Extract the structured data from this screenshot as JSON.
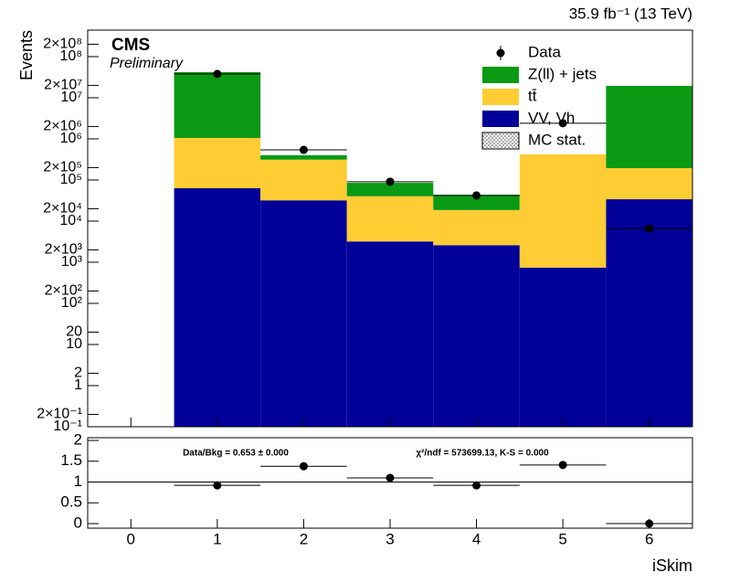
{
  "chart_data": [
    {
      "type": "stacked-histogram",
      "annotations": [
        "CMS",
        "Preliminary",
        "35.9 fb⁻¹ (13 TeV)"
      ],
      "y_label": "Events",
      "x": [
        0,
        1,
        2,
        3,
        4,
        5,
        6
      ],
      "xlim": [
        -0.5,
        6.5
      ],
      "log_y": true,
      "ylim": [
        0.1,
        440000000
      ],
      "yticks": [
        {
          "value": 0.1,
          "label": "10⁻¹"
        },
        {
          "value": 0.2,
          "label": "2×10⁻¹"
        },
        1,
        2,
        10,
        20,
        {
          "value": 100,
          "label": "10²"
        },
        {
          "value": 200,
          "label": "2×10²"
        },
        {
          "value": 1000,
          "label": "10³"
        },
        {
          "value": 2000,
          "label": "2×10³"
        },
        {
          "value": 10000,
          "label": "10⁴"
        },
        {
          "value": 20000,
          "label": "2×10⁴"
        },
        {
          "value": 100000,
          "label": "10⁵"
        },
        {
          "value": 200000,
          "label": "2×10⁵"
        },
        {
          "value": 1000000,
          "label": "10⁶"
        },
        {
          "value": 2000000,
          "label": "2×10⁶"
        },
        {
          "value": 10000000,
          "label": "10⁷"
        },
        {
          "value": 20000000,
          "label": "2×10⁷"
        },
        {
          "value": 100000000,
          "label": "10⁸"
        },
        {
          "value": 200000000,
          "label": "2×10⁸"
        }
      ],
      "legend": "top-right",
      "series": [
        {
          "name": "Data",
          "style": "marker",
          "color": "#000000",
          "values": [
            null,
            38000000,
            540000,
            91000,
            42000,
            2400000,
            6600
          ]
        },
        {
          "name": "Z(ll) + jets",
          "style": "stack",
          "color": "#0a9a14",
          "values": [
            null,
            41000000,
            90000,
            45000,
            25000,
            0,
            19300000
          ]
        },
        {
          "name": "tt̄",
          "style": "stack",
          "color": "#ffcc33",
          "values": [
            null,
            990000,
            280000,
            37000,
            16000,
            420000,
            160000
          ]
        },
        {
          "name": "VV, Vh",
          "style": "stack",
          "color": "#000099",
          "values": [
            null,
            63000,
            32000,
            3200,
            2600,
            740,
            34000
          ]
        },
        {
          "name": "MC stat.",
          "style": "hatch",
          "color": "#444444"
        }
      ]
    },
    {
      "type": "scatter",
      "annotations": [
        "Data/Bkg = 0.653 ± 0.000",
        "χ²/ndf = 573699.13,   K-S = 0.000"
      ],
      "x_label": "iSkim",
      "x": [
        1,
        2,
        3,
        4,
        5,
        6
      ],
      "values": [
        0.92,
        1.38,
        1.1,
        0.92,
        1.41,
        0
      ],
      "xlim": [
        -0.5,
        6.5
      ],
      "xticks": [
        0,
        1,
        2,
        3,
        4,
        5,
        6
      ],
      "ylim": [
        0,
        2
      ],
      "yticks": [
        0,
        0.5,
        1,
        1.5,
        2
      ],
      "reference_line": 1,
      "color": "#000000"
    }
  ]
}
